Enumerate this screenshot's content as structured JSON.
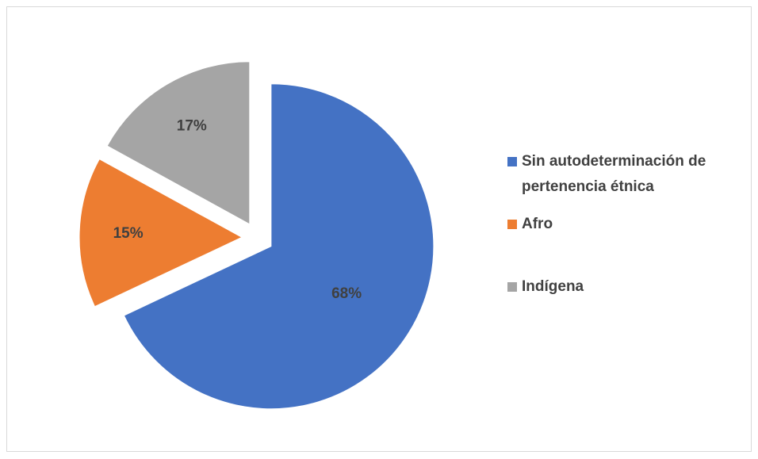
{
  "chart_data": {
    "type": "pie",
    "categories": [
      "Sin autodeterminación de pertenencia étnica",
      "Afro",
      "Indígena"
    ],
    "values": [
      68,
      15,
      17
    ],
    "value_labels": [
      "68%",
      "15%",
      "17%"
    ],
    "colors": [
      "#4472c4",
      "#ed7d31",
      "#a5a5a5"
    ],
    "legend": "right"
  }
}
